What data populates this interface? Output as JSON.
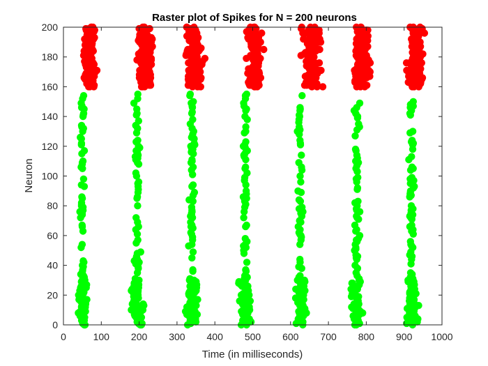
{
  "chart_data": {
    "type": "scatter",
    "title": "Raster plot of Spikes for N = 200 neurons",
    "xlabel": "Time (in milliseconds)",
    "ylabel": "Neuron",
    "xlim": [
      0,
      1000
    ],
    "ylim": [
      0,
      200
    ],
    "xticks": [
      0,
      100,
      200,
      300,
      400,
      500,
      600,
      700,
      800,
      900,
      1000
    ],
    "yticks": [
      0,
      20,
      40,
      60,
      80,
      100,
      120,
      140,
      160,
      180,
      200
    ],
    "grid": false,
    "legend": "none",
    "colors": {
      "excitatory": "#00ff00",
      "inhibitory": "#ff0000",
      "axis": "#262626"
    },
    "series": [
      {
        "neurons": [
          0,
          155
        ],
        "color": "#00ff00",
        "bursts": [
          {
            "center": 50,
            "x_range": [
              20,
              75
            ],
            "dense_below": 30
          },
          {
            "center": 195,
            "x_range": [
              165,
              225
            ],
            "dense_below": 30
          },
          {
            "center": 340,
            "x_range": [
              300,
              370
            ],
            "dense_below": 30
          },
          {
            "center": 480,
            "x_range": [
              450,
              510
            ],
            "dense_below": 30
          },
          {
            "center": 625,
            "x_range": [
              595,
              660
            ],
            "dense_below": 30
          },
          {
            "center": 775,
            "x_range": [
              740,
              810
            ],
            "dense_below": 30
          },
          {
            "center": 920,
            "x_range": [
              890,
              950
            ],
            "dense_below": 30
          }
        ]
      },
      {
        "neurons": [
          160,
          200
        ],
        "color": "#ff0000",
        "bursts": [
          {
            "center": 70,
            "x_range": [
              40,
              100
            ]
          },
          {
            "center": 215,
            "x_range": [
              175,
              250
            ]
          },
          {
            "center": 345,
            "x_range": [
              305,
              385
            ]
          },
          {
            "center": 505,
            "x_range": [
              475,
              535
            ]
          },
          {
            "center": 655,
            "x_range": [
              610,
              700
            ]
          },
          {
            "center": 790,
            "x_range": [
              755,
              825
            ]
          },
          {
            "center": 930,
            "x_range": [
              895,
              965
            ]
          }
        ]
      }
    ]
  }
}
